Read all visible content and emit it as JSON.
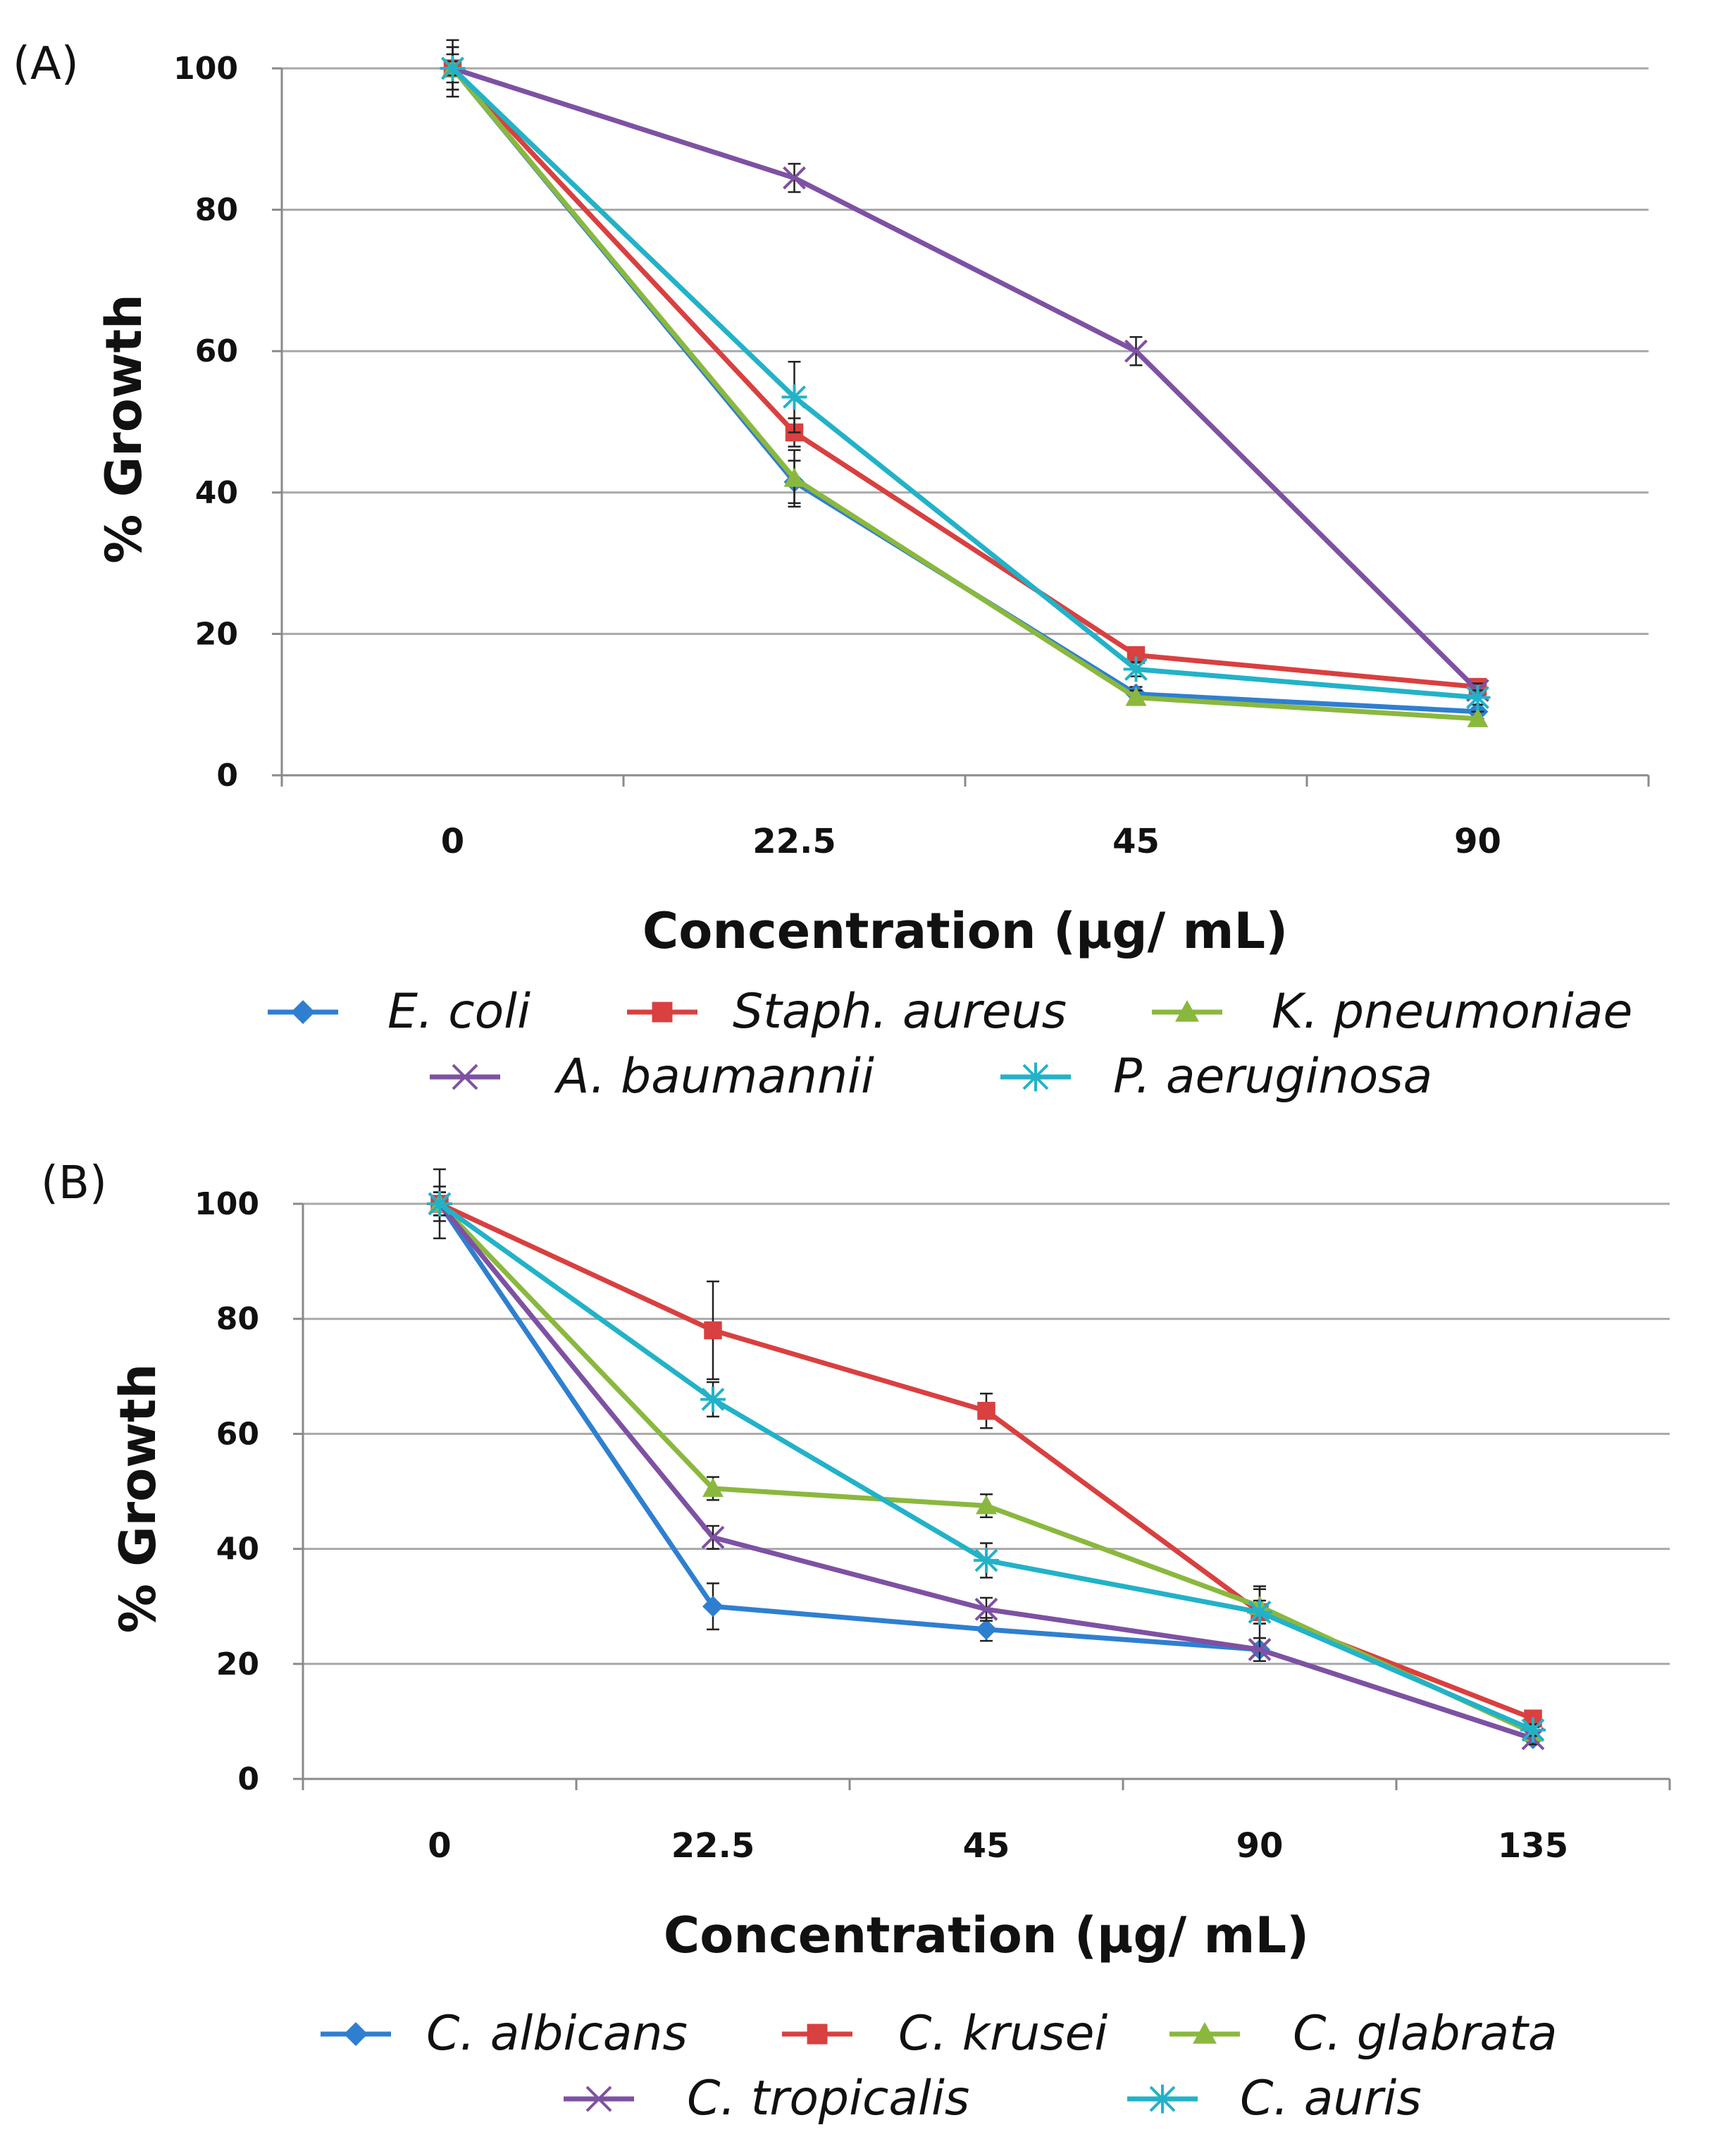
{
  "figure": {
    "panels": [
      "(A)",
      "(B)"
    ]
  },
  "chart_data": [
    {
      "type": "line",
      "panel_label": "(A)",
      "title": "",
      "xlabel": "Concentration (µg/ mL)",
      "ylabel": "% Growth",
      "ylim": [
        0,
        100
      ],
      "yticks": [
        "0",
        "20",
        "40",
        "60",
        "80",
        "100"
      ],
      "grid": true,
      "legend_position": "bottom",
      "categories": [
        "0",
        "22.5",
        "45",
        "90"
      ],
      "series": [
        {
          "name": "E. coli",
          "color": "#2f7fd0",
          "marker": "diamond",
          "values": [
            100,
            41.5,
            11.5,
            9
          ],
          "errors": [
            3,
            3,
            1,
            1
          ]
        },
        {
          "name": "Staph. aureus",
          "color": "#d94040",
          "marker": "square",
          "values": [
            100,
            48.5,
            17,
            12.5
          ],
          "errors": [
            4,
            2,
            1,
            1
          ]
        },
        {
          "name": "K. pneumoniae",
          "color": "#8ab83e",
          "marker": "triangle",
          "values": [
            100,
            42,
            11,
            8
          ],
          "errors": [
            3,
            4,
            1,
            1
          ]
        },
        {
          "name": "A. baumannii",
          "color": "#7e51a3",
          "marker": "x",
          "values": [
            100,
            84.5,
            60,
            12
          ],
          "errors": [
            1,
            2,
            2,
            1
          ]
        },
        {
          "name": "P. aeruginosa",
          "color": "#22b2c8",
          "marker": "star",
          "values": [
            100,
            53.5,
            15,
            11
          ],
          "errors": [
            2,
            5,
            1,
            1
          ]
        }
      ]
    },
    {
      "type": "line",
      "panel_label": "(B)",
      "title": "",
      "xlabel": "Concentration (µg/ mL)",
      "ylabel": "% Growth",
      "ylim": [
        0,
        100
      ],
      "yticks": [
        "0",
        "20",
        "40",
        "60",
        "80",
        "100"
      ],
      "grid": true,
      "legend_position": "bottom",
      "categories": [
        "0",
        "22.5",
        "45",
        "90",
        "135"
      ],
      "series": [
        {
          "name": "C. albicans",
          "color": "#2f7fd0",
          "marker": "diamond",
          "values": [
            100,
            30,
            26,
            22.5,
            7
          ],
          "errors": [
            3,
            4,
            2,
            1,
            1
          ]
        },
        {
          "name": "C. krusei",
          "color": "#d94040",
          "marker": "square",
          "values": [
            100,
            78,
            64,
            29,
            10.5
          ],
          "errors": [
            2,
            8.5,
            3,
            4.5,
            1
          ]
        },
        {
          "name": "C. glabrata",
          "color": "#8ab83e",
          "marker": "triangle",
          "values": [
            100,
            50.5,
            47.5,
            30,
            8
          ],
          "errors": [
            2,
            2,
            2,
            3,
            1
          ]
        },
        {
          "name": "C. tropicalis",
          "color": "#7e51a3",
          "marker": "x",
          "values": [
            100,
            42,
            29.5,
            22.5,
            7
          ],
          "errors": [
            2,
            2,
            2,
            2,
            1
          ]
        },
        {
          "name": "C. auris",
          "color": "#22b2c8",
          "marker": "star",
          "values": [
            100,
            66,
            38,
            29,
            8.5
          ],
          "errors": [
            6,
            3,
            3,
            2,
            1
          ]
        }
      ]
    }
  ]
}
